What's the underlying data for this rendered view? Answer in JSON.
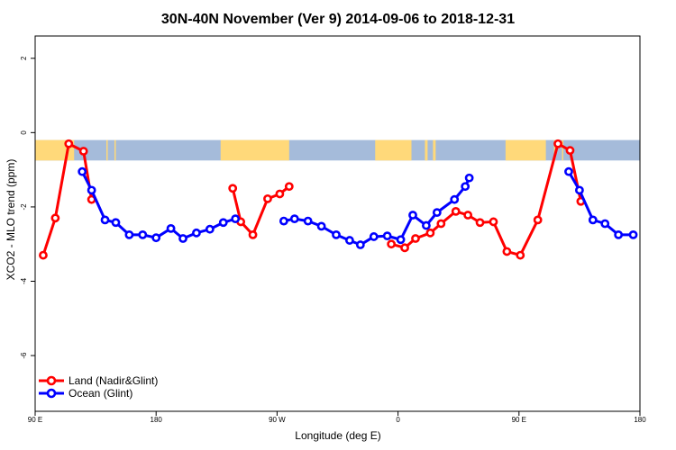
{
  "chart_data": {
    "type": "line",
    "title": "30N-40N November (Ver 9)   2014-09-06 to 2018-12-31",
    "xlabel": "Longitude (deg E)",
    "ylabel": "XCO2 - MLO trend (ppm)",
    "xlim": [
      90,
      540
    ],
    "ylim": [
      -7.5,
      2.6
    ],
    "x_ticks": [
      {
        "value": 90,
        "label": "90 E"
      },
      {
        "value": 180,
        "label": "180"
      },
      {
        "value": 270,
        "label": "90 W"
      },
      {
        "value": 360,
        "label": "0"
      },
      {
        "value": 450,
        "label": "90 E"
      },
      {
        "value": 540,
        "label": "180"
      }
    ],
    "y_ticks": [
      {
        "value": 2,
        "label": "2"
      },
      {
        "value": 0,
        "label": "0"
      },
      {
        "value": -2,
        "label": "-2"
      },
      {
        "value": -4,
        "label": "-4"
      },
      {
        "value": -6,
        "label": "-6"
      }
    ],
    "land_ocean_band": {
      "y_top": -0.2,
      "y_bottom": -0.75,
      "land_color": "#FFD97A",
      "ocean_color": "#A5BBDA",
      "land_ranges": [
        [
          90,
          119
        ],
        [
          143,
          144
        ],
        [
          149,
          150
        ],
        [
          228,
          279
        ],
        [
          343,
          370
        ],
        [
          380,
          382
        ],
        [
          386,
          388
        ],
        [
          440,
          470
        ],
        [
          476,
          477
        ],
        [
          482,
          483
        ]
      ]
    },
    "series": [
      {
        "name": "Land (Nadir&Glint)",
        "color": "#FF0000",
        "segments": [
          [
            [
              96,
              -3.3
            ],
            [
              105,
              -2.3
            ],
            [
              115,
              -0.3
            ],
            [
              126,
              -0.5
            ],
            [
              132,
              -1.8
            ]
          ],
          [
            [
              237,
              -1.5
            ],
            [
              243,
              -2.4
            ],
            [
              252,
              -2.75
            ],
            [
              263,
              -1.78
            ],
            [
              272,
              -1.65
            ],
            [
              279,
              -1.45
            ]
          ],
          [
            [
              355,
              -3.0
            ],
            [
              365,
              -3.1
            ],
            [
              373,
              -2.85
            ],
            [
              384,
              -2.7
            ],
            [
              392,
              -2.45
            ],
            [
              403,
              -2.12
            ],
            [
              412,
              -2.22
            ],
            [
              421,
              -2.42
            ],
            [
              431,
              -2.4
            ],
            [
              441,
              -3.2
            ],
            [
              451,
              -3.3
            ],
            [
              464,
              -2.35
            ],
            [
              479,
              -0.3
            ],
            [
              488,
              -0.48
            ],
            [
              496,
              -1.85
            ]
          ]
        ]
      },
      {
        "name": "Ocean (Glint)",
        "color": "#0000FF",
        "segments": [
          [
            [
              125,
              -1.05
            ],
            [
              132,
              -1.55
            ],
            [
              142,
              -2.35
            ],
            [
              150,
              -2.42
            ],
            [
              160,
              -2.75
            ],
            [
              170,
              -2.75
            ],
            [
              180,
              -2.83
            ],
            [
              191,
              -2.58
            ],
            [
              200,
              -2.85
            ],
            [
              210,
              -2.7
            ],
            [
              220,
              -2.6
            ],
            [
              230,
              -2.42
            ],
            [
              239,
              -2.32
            ]
          ],
          [
            [
              275,
              -2.38
            ],
            [
              283,
              -2.32
            ],
            [
              293,
              -2.38
            ],
            [
              303,
              -2.52
            ],
            [
              314,
              -2.75
            ],
            [
              324,
              -2.9
            ],
            [
              332,
              -3.02
            ],
            [
              342,
              -2.8
            ],
            [
              352,
              -2.78
            ],
            [
              362,
              -2.88
            ],
            [
              371,
              -2.22
            ],
            [
              381,
              -2.5
            ],
            [
              389,
              -2.15
            ],
            [
              402,
              -1.8
            ],
            [
              410,
              -1.45
            ],
            [
              413,
              -1.22
            ]
          ],
          [
            [
              487,
              -1.05
            ],
            [
              495,
              -1.55
            ],
            [
              505,
              -2.35
            ],
            [
              514,
              -2.45
            ],
            [
              524,
              -2.75
            ],
            [
              535,
              -2.75
            ]
          ]
        ]
      }
    ],
    "legend_position": "bottom-left"
  }
}
